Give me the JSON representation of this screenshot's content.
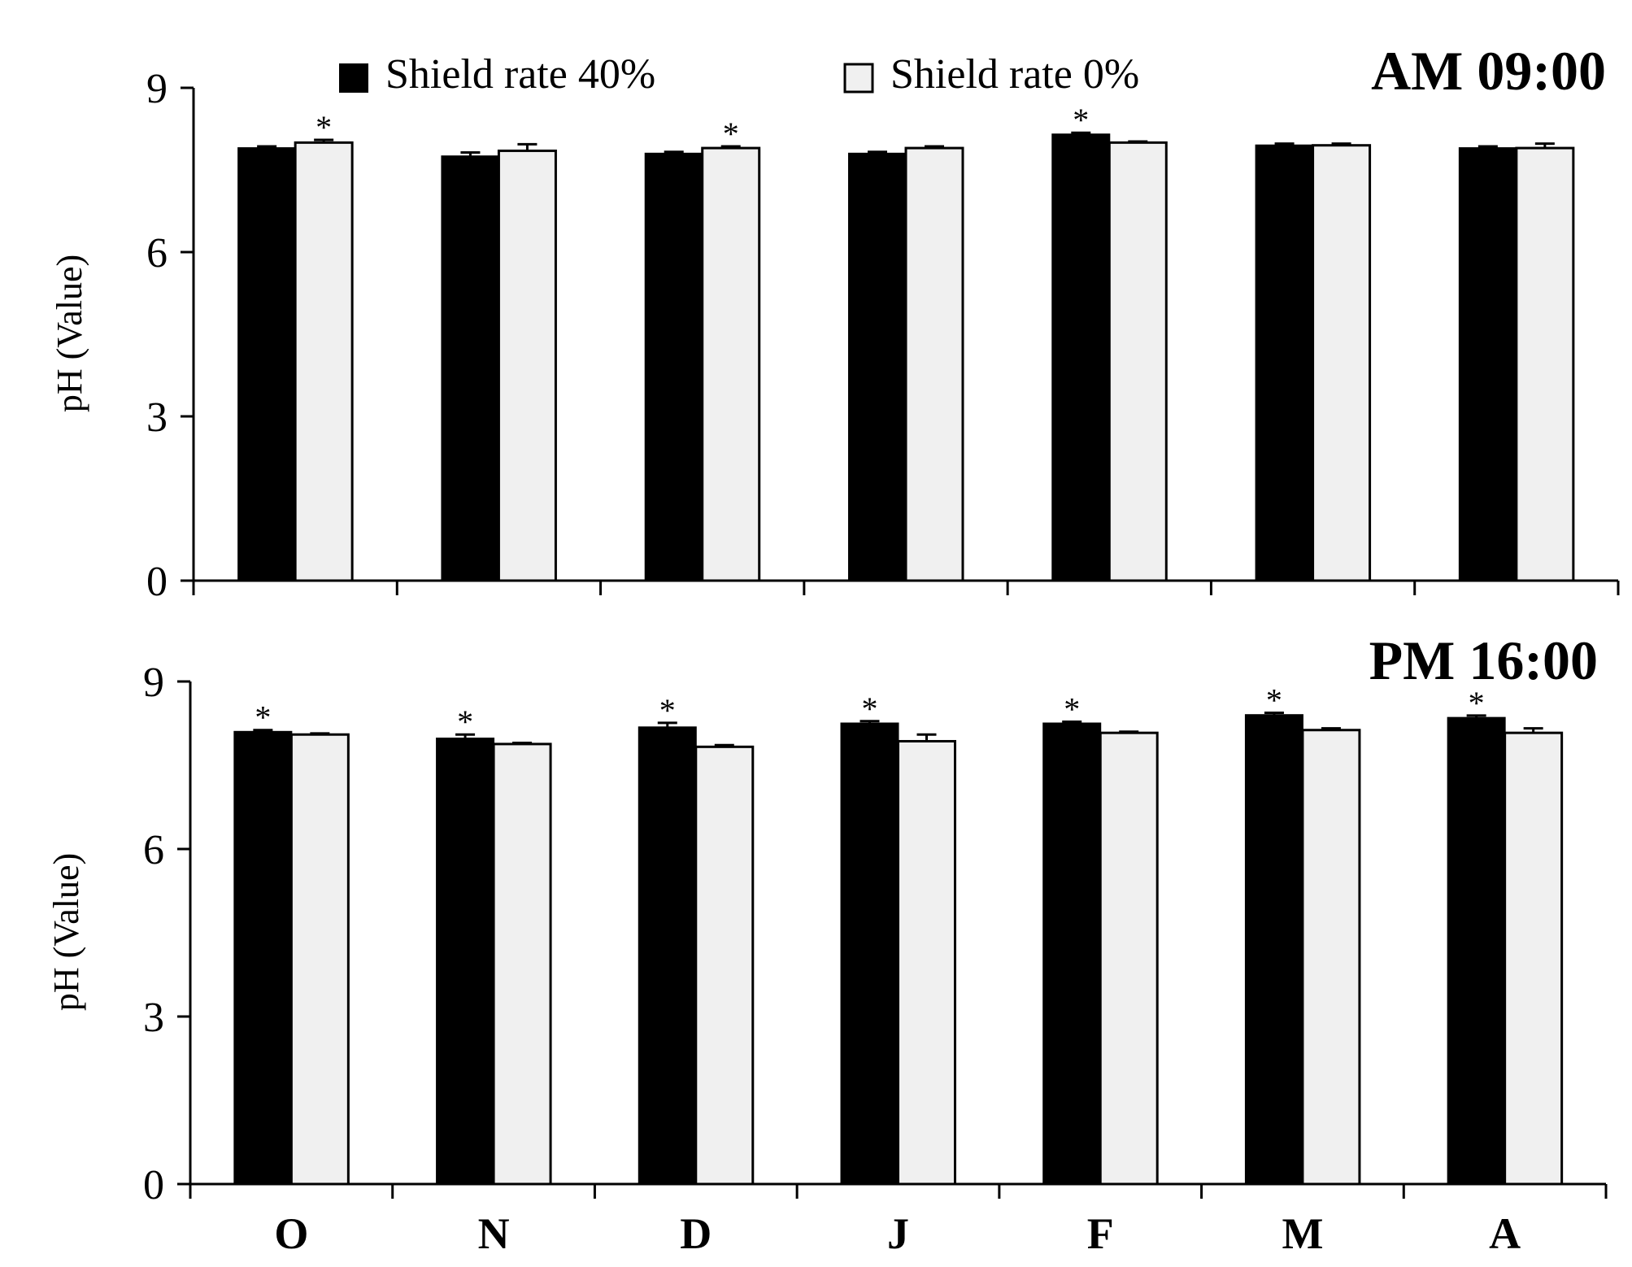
{
  "chart_data": {
    "type": "bar",
    "ylabel": "pH (Value)",
    "categories": [
      "O",
      "N",
      "D",
      "J",
      "F",
      "M",
      "A"
    ],
    "legend": {
      "placement": "top",
      "entries": [
        {
          "name": "Shield rate 40%",
          "color": "#000000"
        },
        {
          "name": "Shield rate 0%",
          "color": "#f0f0f0"
        }
      ]
    },
    "significance_marker": "*",
    "panels": [
      {
        "title": "AM 09:00",
        "ylim": [
          0,
          9
        ],
        "yticks": [
          "0",
          "3",
          "6",
          "9"
        ],
        "series": [
          {
            "name": "Shield rate 40%",
            "values": [
              7.9,
              7.75,
              7.8,
              7.8,
              8.15,
              7.95,
              7.9
            ],
            "errors": [
              0.03,
              0.07,
              0.03,
              0.03,
              0.03,
              0.03,
              0.03
            ],
            "significant": [
              false,
              false,
              false,
              false,
              true,
              false,
              false
            ]
          },
          {
            "name": "Shield rate 0%",
            "values": [
              8.0,
              7.85,
              7.9,
              7.9,
              8.0,
              7.95,
              7.9
            ],
            "errors": [
              0.05,
              0.12,
              0.03,
              0.03,
              0.02,
              0.03,
              0.08
            ],
            "significant": [
              true,
              false,
              true,
              false,
              false,
              false,
              false
            ]
          }
        ]
      },
      {
        "title": "PM 16:00",
        "ylim": [
          0,
          9
        ],
        "yticks": [
          "0",
          "3",
          "6",
          "9"
        ],
        "series": [
          {
            "name": "Shield rate 40%",
            "values": [
              8.1,
              7.98,
              8.18,
              8.25,
              8.25,
              8.4,
              8.35
            ],
            "errors": [
              0.03,
              0.07,
              0.08,
              0.04,
              0.03,
              0.04,
              0.04
            ],
            "significant": [
              true,
              true,
              true,
              true,
              true,
              true,
              true
            ]
          },
          {
            "name": "Shield rate 0%",
            "values": [
              8.05,
              7.88,
              7.83,
              7.93,
              8.08,
              8.13,
              8.08
            ],
            "errors": [
              0.02,
              0.02,
              0.03,
              0.12,
              0.02,
              0.03,
              0.08
            ],
            "significant": [
              false,
              false,
              false,
              false,
              false,
              false,
              false
            ]
          }
        ]
      }
    ]
  }
}
